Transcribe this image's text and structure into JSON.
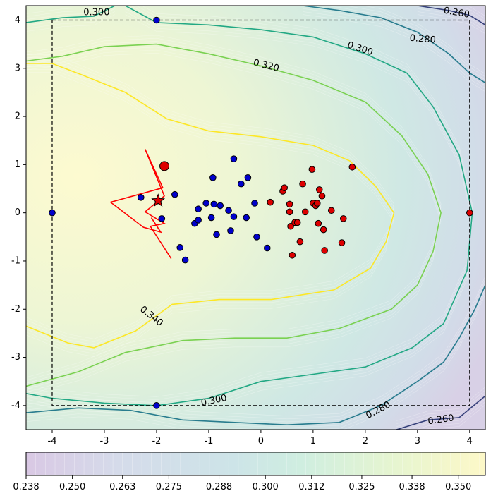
{
  "chart_data": {
    "type": "contour",
    "title": "",
    "xlabel": "",
    "ylabel": "",
    "xlim": [
      -4.5,
      4.3
    ],
    "ylim": [
      -4.5,
      4.3
    ],
    "xticks": [
      "-4",
      "-3",
      "-2",
      "-1",
      "0",
      "1",
      "2",
      "3",
      "4"
    ],
    "yticks": [
      "4",
      "3",
      "2",
      "1",
      "0",
      "-1",
      "-2",
      "-3",
      "-4"
    ],
    "bounds_box": {
      "xmin": -4,
      "xmax": 4,
      "ymin": -4,
      "ymax": 4
    },
    "contour_levels": [
      0.26,
      0.28,
      0.3,
      0.32,
      0.34
    ],
    "contour_labels": [
      {
        "text": "0.300",
        "x": -3.15,
        "y": 4.15,
        "angle": 0
      },
      {
        "text": "0.260",
        "x": 3.75,
        "y": 4.15,
        "angle": 10
      },
      {
        "text": "0.280",
        "x": 3.1,
        "y": 3.6,
        "angle": 5
      },
      {
        "text": "0.300",
        "x": 1.9,
        "y": 3.4,
        "angle": 18
      },
      {
        "text": "0.320",
        "x": 0.1,
        "y": 3.05,
        "angle": 14
      },
      {
        "text": "0.340",
        "x": -2.1,
        "y": -2.15,
        "angle": 38
      },
      {
        "text": "0.300",
        "x": -0.9,
        "y": -3.9,
        "angle": -12
      },
      {
        "text": "0.280",
        "x": 2.25,
        "y": -4.1,
        "angle": -28
      },
      {
        "text": "0.260",
        "x": 3.45,
        "y": -4.3,
        "angle": -8
      }
    ],
    "contour_lines": [
      {
        "level": 0.34,
        "points": [
          [
            -4.5,
            3.1
          ],
          [
            -4.0,
            3.1
          ],
          [
            -3.4,
            2.85
          ],
          [
            -2.6,
            2.5
          ],
          [
            -1.8,
            1.95
          ],
          [
            -1.0,
            1.7
          ],
          [
            0.0,
            1.58
          ],
          [
            1.0,
            1.4
          ],
          [
            1.7,
            1.08
          ],
          [
            2.2,
            0.55
          ],
          [
            2.55,
            0.0
          ],
          [
            2.4,
            -0.6
          ],
          [
            2.1,
            -1.15
          ],
          [
            1.4,
            -1.6
          ],
          [
            0.2,
            -1.8
          ],
          [
            -0.8,
            -1.8
          ],
          [
            -1.7,
            -1.9
          ],
          [
            -2.4,
            -2.45
          ],
          [
            -3.2,
            -2.8
          ],
          [
            -3.7,
            -2.7
          ],
          [
            -4.5,
            -2.35
          ]
        ]
      },
      {
        "level": 0.32,
        "points": [
          [
            -4.5,
            3.15
          ],
          [
            -3.8,
            3.25
          ],
          [
            -3.0,
            3.45
          ],
          [
            -2.0,
            3.5
          ],
          [
            -1.0,
            3.3
          ],
          [
            0.0,
            3.05
          ],
          [
            1.0,
            2.75
          ],
          [
            2.0,
            2.3
          ],
          [
            2.7,
            1.6
          ],
          [
            3.2,
            0.8
          ],
          [
            3.45,
            0.0
          ],
          [
            3.3,
            -0.8
          ],
          [
            3.0,
            -1.5
          ],
          [
            2.5,
            -2.0
          ],
          [
            1.5,
            -2.4
          ],
          [
            0.5,
            -2.6
          ],
          [
            -0.5,
            -2.6
          ],
          [
            -1.5,
            -2.65
          ],
          [
            -2.6,
            -2.9
          ],
          [
            -3.5,
            -3.3
          ],
          [
            -4.5,
            -3.6
          ]
        ]
      },
      {
        "level": 0.3,
        "points": [
          [
            -4.5,
            3.95
          ],
          [
            -3.8,
            4.05
          ],
          [
            -3.2,
            4.08
          ],
          [
            -2.8,
            4.3
          ]
        ]
      },
      {
        "level": 0.3,
        "points": [
          [
            -2.6,
            4.3
          ],
          [
            -2.0,
            3.95
          ],
          [
            -1.0,
            3.9
          ],
          [
            0.0,
            3.8
          ],
          [
            1.0,
            3.65
          ],
          [
            2.0,
            3.3
          ],
          [
            2.8,
            2.9
          ],
          [
            3.3,
            2.2
          ],
          [
            3.8,
            1.2
          ],
          [
            4.05,
            0.0
          ],
          [
            3.95,
            -1.2
          ],
          [
            3.5,
            -2.3
          ],
          [
            2.9,
            -2.8
          ],
          [
            2.0,
            -3.2
          ],
          [
            1.0,
            -3.35
          ],
          [
            0.0,
            -3.5
          ],
          [
            -1.0,
            -3.85
          ],
          [
            -2.0,
            -4.0
          ],
          [
            -3.0,
            -3.95
          ],
          [
            -4.0,
            -3.85
          ],
          [
            -4.5,
            -3.75
          ]
        ]
      },
      {
        "level": 0.28,
        "points": [
          [
            -4.5,
            -4.15
          ],
          [
            -3.5,
            -4.05
          ],
          [
            -2.5,
            -4.1
          ],
          [
            -1.5,
            -4.3
          ],
          [
            -0.5,
            -4.35
          ],
          [
            0.5,
            -4.4
          ],
          [
            1.5,
            -4.35
          ],
          [
            2.3,
            -4.0
          ],
          [
            3.0,
            -3.5
          ],
          [
            3.5,
            -3.1
          ],
          [
            3.8,
            -2.6
          ],
          [
            4.1,
            -2.0
          ],
          [
            4.3,
            -1.5
          ]
        ]
      },
      {
        "level": 0.28,
        "points": [
          [
            0.8,
            4.3
          ],
          [
            1.5,
            4.2
          ],
          [
            2.3,
            4.05
          ],
          [
            3.0,
            3.75
          ],
          [
            3.6,
            3.3
          ],
          [
            4.0,
            2.9
          ],
          [
            4.3,
            2.7
          ]
        ]
      },
      {
        "level": 0.26,
        "points": [
          [
            2.6,
            -4.5
          ],
          [
            3.2,
            -4.3
          ],
          [
            3.8,
            -4.25
          ],
          [
            4.3,
            -3.8
          ]
        ]
      },
      {
        "level": 0.26,
        "points": [
          [
            3.0,
            4.3
          ],
          [
            3.6,
            4.2
          ],
          [
            4.0,
            4.1
          ],
          [
            4.3,
            3.9
          ]
        ]
      }
    ],
    "colorbar": {
      "ticks": [
        "0.238",
        "0.250",
        "0.263",
        "0.275",
        "0.288",
        "0.300",
        "0.312",
        "0.325",
        "0.338",
        "0.350"
      ],
      "range": [
        0.238,
        0.357
      ]
    },
    "series": [
      {
        "name": "blue points",
        "color": "#0000cc",
        "points": [
          [
            -2.0,
            4.0
          ],
          [
            -4.0,
            0.0
          ],
          [
            -2.0,
            -4.0
          ],
          [
            -2.3,
            0.32
          ],
          [
            -1.9,
            -0.12
          ],
          [
            -1.65,
            0.38
          ],
          [
            -1.55,
            -0.72
          ],
          [
            -1.45,
            -0.98
          ],
          [
            -1.27,
            -0.22
          ],
          [
            -1.2,
            0.08
          ],
          [
            -1.2,
            -0.15
          ],
          [
            -1.05,
            0.2
          ],
          [
            -0.95,
            -0.1
          ],
          [
            -0.92,
            0.73
          ],
          [
            -0.9,
            0.18
          ],
          [
            -0.85,
            -0.45
          ],
          [
            -0.78,
            0.15
          ],
          [
            -0.62,
            0.05
          ],
          [
            -0.58,
            -0.37
          ],
          [
            -0.52,
            -0.08
          ],
          [
            -0.52,
            1.12
          ],
          [
            -0.38,
            0.6
          ],
          [
            -0.25,
            0.73
          ],
          [
            -0.28,
            -0.1
          ],
          [
            -0.12,
            0.2
          ],
          [
            -0.08,
            -0.5
          ],
          [
            0.12,
            -0.73
          ]
        ]
      },
      {
        "name": "red points",
        "color": "#dd0000",
        "points": [
          [
            4.0,
            0.0
          ],
          [
            0.18,
            0.22
          ],
          [
            0.42,
            0.45
          ],
          [
            0.45,
            0.52
          ],
          [
            0.55,
            0.18
          ],
          [
            0.55,
            0.02
          ],
          [
            0.57,
            -0.28
          ],
          [
            0.6,
            -0.88
          ],
          [
            0.65,
            -0.2
          ],
          [
            0.7,
            -0.2
          ],
          [
            0.75,
            -0.6
          ],
          [
            0.8,
            0.6
          ],
          [
            0.85,
            0.02
          ],
          [
            0.98,
            0.9
          ],
          [
            1.0,
            0.2
          ],
          [
            1.05,
            0.15
          ],
          [
            1.08,
            0.2
          ],
          [
            1.1,
            -0.22
          ],
          [
            1.12,
            0.48
          ],
          [
            1.17,
            0.35
          ],
          [
            1.2,
            -0.35
          ],
          [
            1.22,
            -0.78
          ],
          [
            1.35,
            0.05
          ],
          [
            1.55,
            -0.62
          ],
          [
            1.58,
            -0.12
          ],
          [
            1.75,
            0.95
          ]
        ]
      },
      {
        "name": "best point",
        "color": "#dd0000",
        "points": [
          [
            -1.85,
            0.97
          ]
        ]
      },
      {
        "name": "star",
        "color": "#dd0000",
        "points": [
          [
            -1.97,
            0.25
          ]
        ]
      },
      {
        "name": "trajectory",
        "color": "#ff0000",
        "points": [
          [
            -1.72,
            -0.95
          ],
          [
            -2.12,
            -0.28
          ],
          [
            -1.85,
            -0.22
          ],
          [
            -2.22,
            0.02
          ],
          [
            -1.85,
            0.35
          ],
          [
            -2.22,
            1.32
          ],
          [
            -1.88,
            0.52
          ],
          [
            -2.88,
            0.22
          ],
          [
            -2.25,
            -0.3
          ],
          [
            -1.92,
            -0.4
          ],
          [
            -2.1,
            -0.1
          ]
        ]
      }
    ]
  }
}
